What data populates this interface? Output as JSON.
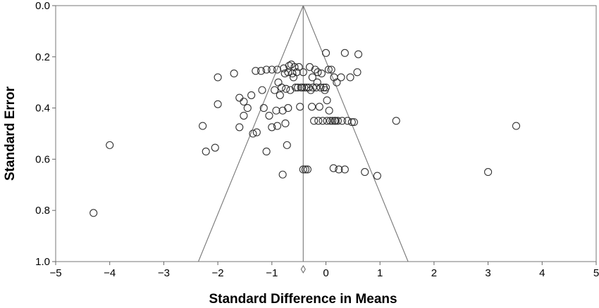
{
  "chart_data": {
    "type": "scatter",
    "title": "",
    "xlabel": "Standard Difference in Means",
    "ylabel": "Standard Error",
    "xlim": [
      -5,
      5
    ],
    "ylim": [
      0,
      1
    ],
    "y_inverted": true,
    "x_ticks": [
      -5,
      -4,
      -3,
      -2,
      -1,
      0,
      1,
      2,
      3,
      4,
      5
    ],
    "x_tick_labels": [
      "−5",
      "−4",
      "−3",
      "−2",
      "−1",
      "0",
      "1",
      "2",
      "3",
      "4",
      "5"
    ],
    "y_ticks": [
      0.0,
      0.2,
      0.4,
      0.6,
      0.8,
      1.0
    ],
    "y_tick_labels": [
      "0.0",
      "0.2",
      "0.4",
      "0.6",
      "0.8",
      "1.0"
    ],
    "funnel": {
      "center": -0.42,
      "apex_se": 0.0,
      "base_se": 1.0,
      "lower_x_at_base": -2.36,
      "upper_x_at_base": 1.52
    },
    "summary_marker": {
      "shape": "diamond",
      "x": -0.42,
      "y": 1.03
    },
    "points": [
      {
        "x": -4.3,
        "y": 0.81
      },
      {
        "x": -4.0,
        "y": 0.545
      },
      {
        "x": -2.28,
        "y": 0.47
      },
      {
        "x": -2.22,
        "y": 0.57
      },
      {
        "x": -2.05,
        "y": 0.555
      },
      {
        "x": -2.0,
        "y": 0.28
      },
      {
        "x": -2.0,
        "y": 0.385
      },
      {
        "x": -1.7,
        "y": 0.265
      },
      {
        "x": -1.6,
        "y": 0.36
      },
      {
        "x": -1.6,
        "y": 0.475
      },
      {
        "x": -1.52,
        "y": 0.43
      },
      {
        "x": -1.52,
        "y": 0.375
      },
      {
        "x": -1.45,
        "y": 0.4
      },
      {
        "x": -1.38,
        "y": 0.35
      },
      {
        "x": -1.35,
        "y": 0.5
      },
      {
        "x": -1.3,
        "y": 0.255
      },
      {
        "x": -1.28,
        "y": 0.495
      },
      {
        "x": -1.2,
        "y": 0.255
      },
      {
        "x": -1.18,
        "y": 0.33
      },
      {
        "x": -1.15,
        "y": 0.4
      },
      {
        "x": -1.1,
        "y": 0.57
      },
      {
        "x": -1.1,
        "y": 0.25
      },
      {
        "x": -1.05,
        "y": 0.43
      },
      {
        "x": -1.0,
        "y": 0.25
      },
      {
        "x": -1.0,
        "y": 0.475
      },
      {
        "x": -0.95,
        "y": 0.33
      },
      {
        "x": -0.92,
        "y": 0.41
      },
      {
        "x": -0.9,
        "y": 0.47
      },
      {
        "x": -0.9,
        "y": 0.25
      },
      {
        "x": -0.88,
        "y": 0.3
      },
      {
        "x": -0.85,
        "y": 0.35
      },
      {
        "x": -0.82,
        "y": 0.32
      },
      {
        "x": -0.8,
        "y": 0.41
      },
      {
        "x": -0.8,
        "y": 0.66
      },
      {
        "x": -0.78,
        "y": 0.245
      },
      {
        "x": -0.76,
        "y": 0.265
      },
      {
        "x": -0.75,
        "y": 0.46
      },
      {
        "x": -0.74,
        "y": 0.325
      },
      {
        "x": -0.72,
        "y": 0.545
      },
      {
        "x": -0.7,
        "y": 0.26
      },
      {
        "x": -0.7,
        "y": 0.4
      },
      {
        "x": -0.68,
        "y": 0.235
      },
      {
        "x": -0.66,
        "y": 0.33
      },
      {
        "x": -0.64,
        "y": 0.23
      },
      {
        "x": -0.62,
        "y": 0.265
      },
      {
        "x": -0.6,
        "y": 0.28
      },
      {
        "x": -0.58,
        "y": 0.24
      },
      {
        "x": -0.56,
        "y": 0.32
      },
      {
        "x": -0.54,
        "y": 0.26
      },
      {
        "x": -0.52,
        "y": 0.32
      },
      {
        "x": -0.5,
        "y": 0.24
      },
      {
        "x": -0.48,
        "y": 0.395
      },
      {
        "x": -0.46,
        "y": 0.32
      },
      {
        "x": -0.44,
        "y": 0.32
      },
      {
        "x": -0.42,
        "y": 0.26
      },
      {
        "x": -0.42,
        "y": 0.64
      },
      {
        "x": -0.4,
        "y": 0.32
      },
      {
        "x": -0.38,
        "y": 0.64
      },
      {
        "x": -0.36,
        "y": 0.32
      },
      {
        "x": -0.34,
        "y": 0.64
      },
      {
        "x": -0.32,
        "y": 0.32
      },
      {
        "x": -0.3,
        "y": 0.24
      },
      {
        "x": -0.28,
        "y": 0.33
      },
      {
        "x": -0.26,
        "y": 0.395
      },
      {
        "x": -0.25,
        "y": 0.28
      },
      {
        "x": -0.24,
        "y": 0.32
      },
      {
        "x": -0.22,
        "y": 0.45
      },
      {
        "x": -0.2,
        "y": 0.25
      },
      {
        "x": -0.18,
        "y": 0.32
      },
      {
        "x": -0.16,
        "y": 0.3
      },
      {
        "x": -0.15,
        "y": 0.26
      },
      {
        "x": -0.14,
        "y": 0.45
      },
      {
        "x": -0.12,
        "y": 0.395
      },
      {
        "x": -0.1,
        "y": 0.32
      },
      {
        "x": -0.08,
        "y": 0.265
      },
      {
        "x": -0.06,
        "y": 0.45
      },
      {
        "x": -0.04,
        "y": 0.32
      },
      {
        "x": -0.02,
        "y": 0.33
      },
      {
        "x": 0.0,
        "y": 0.185
      },
      {
        "x": 0.0,
        "y": 0.32
      },
      {
        "x": 0.02,
        "y": 0.37
      },
      {
        "x": 0.02,
        "y": 0.45
      },
      {
        "x": 0.05,
        "y": 0.25
      },
      {
        "x": 0.06,
        "y": 0.41
      },
      {
        "x": 0.08,
        "y": 0.45
      },
      {
        "x": 0.1,
        "y": 0.25
      },
      {
        "x": 0.12,
        "y": 0.45
      },
      {
        "x": 0.14,
        "y": 0.635
      },
      {
        "x": 0.15,
        "y": 0.28
      },
      {
        "x": 0.16,
        "y": 0.45
      },
      {
        "x": 0.18,
        "y": 0.45
      },
      {
        "x": 0.2,
        "y": 0.3
      },
      {
        "x": 0.22,
        "y": 0.45
      },
      {
        "x": 0.24,
        "y": 0.64
      },
      {
        "x": 0.28,
        "y": 0.28
      },
      {
        "x": 0.3,
        "y": 0.45
      },
      {
        "x": 0.35,
        "y": 0.64
      },
      {
        "x": 0.35,
        "y": 0.185
      },
      {
        "x": 0.4,
        "y": 0.45
      },
      {
        "x": 0.45,
        "y": 0.28
      },
      {
        "x": 0.48,
        "y": 0.455
      },
      {
        "x": 0.52,
        "y": 0.455
      },
      {
        "x": 0.58,
        "y": 0.26
      },
      {
        "x": 0.6,
        "y": 0.19
      },
      {
        "x": 0.72,
        "y": 0.65
      },
      {
        "x": 0.95,
        "y": 0.665
      },
      {
        "x": 1.3,
        "y": 0.45
      },
      {
        "x": 3.0,
        "y": 0.65
      },
      {
        "x": 3.52,
        "y": 0.47
      }
    ]
  }
}
